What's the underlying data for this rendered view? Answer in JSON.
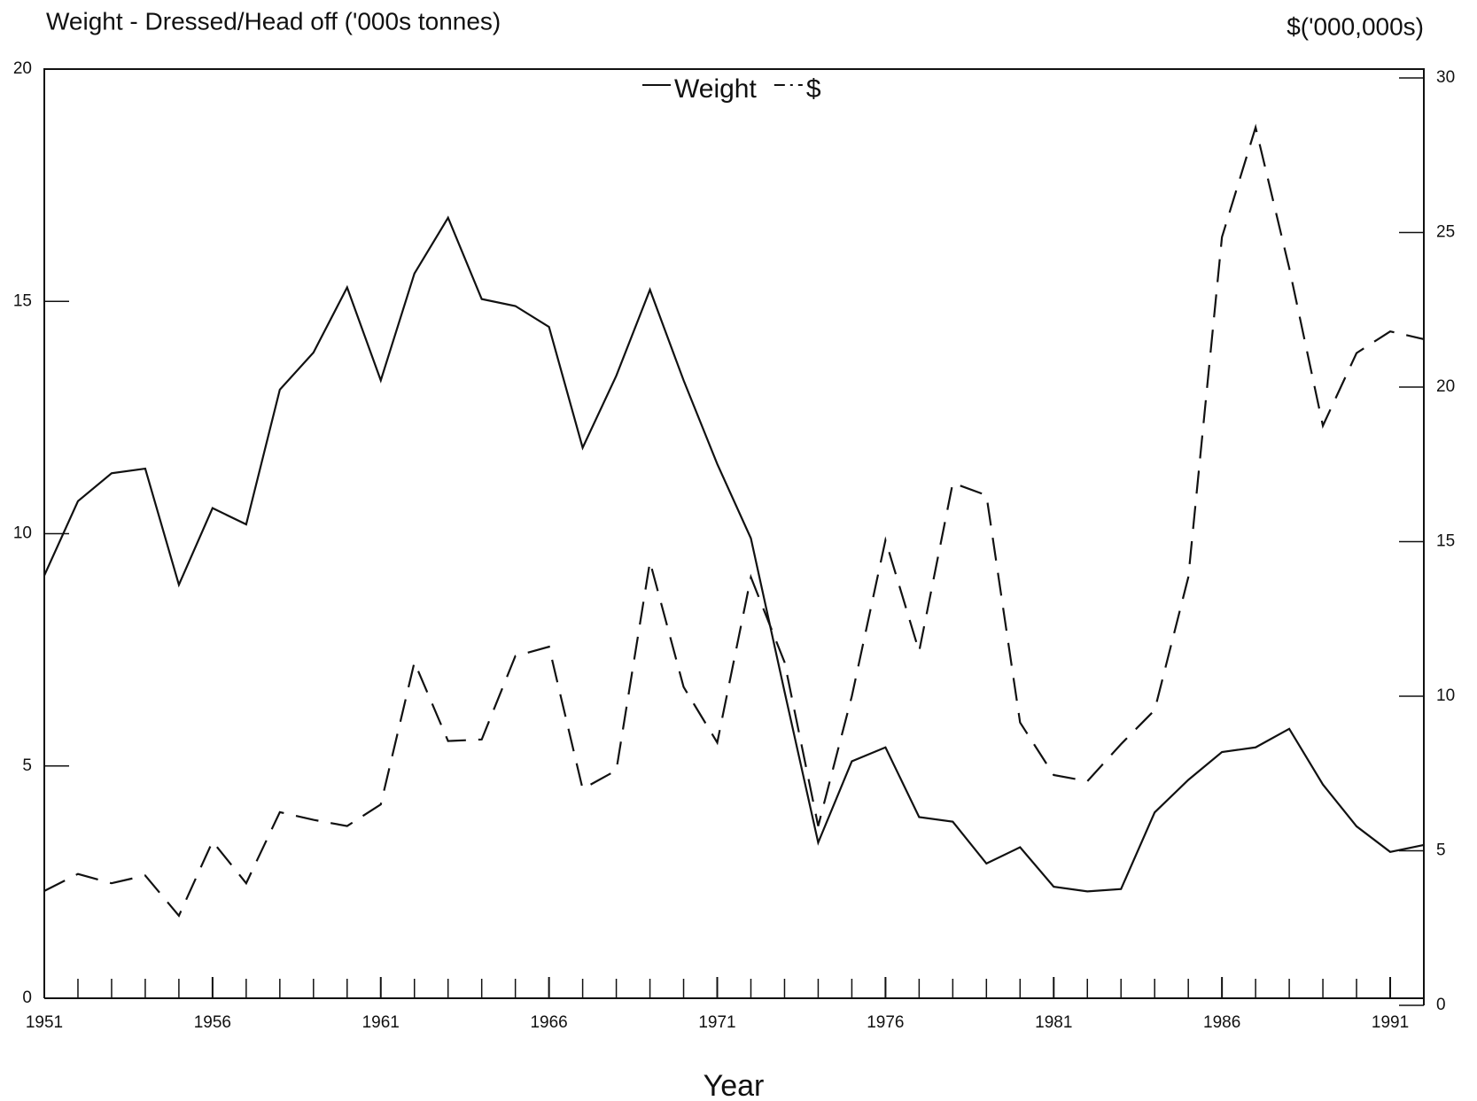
{
  "chart_data": {
    "type": "line",
    "title": "Weight - Dressed/Head off ('000s tonnes)",
    "y2_title": "$('000,000s)",
    "x_label": "Year",
    "x": [
      1951,
      1952,
      1953,
      1954,
      1955,
      1956,
      1957,
      1958,
      1959,
      1960,
      1961,
      1962,
      1963,
      1964,
      1965,
      1966,
      1967,
      1968,
      1969,
      1970,
      1971,
      1972,
      1973,
      1974,
      1975,
      1976,
      1977,
      1978,
      1979,
      1980,
      1981,
      1982,
      1983,
      1984,
      1985,
      1986,
      1987,
      1988,
      1989,
      1990,
      1991,
      1992
    ],
    "series": [
      {
        "name": "Weight",
        "color": "#111111",
        "line_style": "solid",
        "values": [
          9.1,
          10.7,
          11.3,
          11.4,
          8.9,
          10.55,
          10.2,
          13.1,
          13.9,
          15.3,
          13.3,
          15.6,
          16.8,
          15.05,
          14.9,
          14.45,
          11.85,
          13.4,
          15.25,
          13.3,
          11.5,
          9.9,
          6.6,
          3.35,
          5.1,
          5.4,
          3.9,
          3.8,
          2.9,
          3.25,
          2.4,
          2.3,
          2.35,
          4.0,
          4.7,
          5.3,
          5.4,
          5.8,
          4.6,
          3.7,
          3.15,
          3.3
        ]
      },
      {
        "name": "$",
        "color": "#111111",
        "line_style": "dashed",
        "axis": "y2",
        "values": [
          3.7,
          4.25,
          3.95,
          4.2,
          2.9,
          5.3,
          3.95,
          6.25,
          6.0,
          5.8,
          6.5,
          11.1,
          8.55,
          8.6,
          11.3,
          11.6,
          7.0,
          7.6,
          14.35,
          10.3,
          8.5,
          13.85,
          11.1,
          5.8,
          10.0,
          15.05,
          11.45,
          16.9,
          16.5,
          9.15,
          7.45,
          7.25,
          8.45,
          9.55,
          13.85,
          24.85,
          28.4,
          23.85,
          18.75,
          21.1,
          21.8,
          21.55
        ]
      }
    ],
    "xlim": [
      1951,
      1992
    ],
    "xticks": [
      1951,
      1956,
      1961,
      1966,
      1971,
      1976,
      1981,
      1986,
      1991
    ],
    "ylim": [
      0,
      20
    ],
    "yticks": [
      0,
      5,
      10,
      15,
      20
    ],
    "y2lim": [
      0,
      30
    ],
    "y2ticks": [
      0,
      5,
      10,
      15,
      20,
      25,
      30
    ]
  }
}
